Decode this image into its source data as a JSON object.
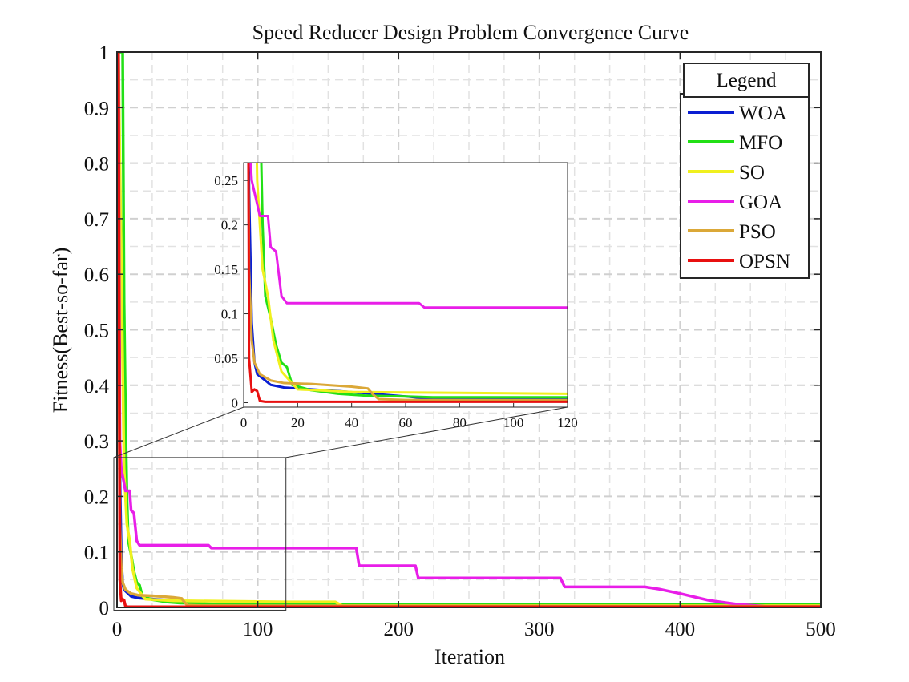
{
  "chart_data": {
    "type": "line",
    "title": "Speed Reducer Design Problem Convergence Curve",
    "xlabel": "Iteration",
    "ylabel": "Fitness(Best-so-far)",
    "xlim": [
      0,
      500
    ],
    "ylim": [
      0,
      1
    ],
    "xticks": [
      0,
      100,
      200,
      300,
      400,
      500
    ],
    "yticks": [
      0,
      0.1,
      0.2,
      0.3,
      0.4,
      0.5,
      0.6,
      0.7,
      0.8,
      0.9,
      1
    ],
    "grid": true,
    "legend": {
      "title": "Legend",
      "position": "top-right"
    },
    "series": [
      {
        "name": "WOA",
        "color": "#0a1ed2",
        "points": [
          [
            1,
            1
          ],
          [
            2,
            0.24
          ],
          [
            3,
            0.09
          ],
          [
            4,
            0.045
          ],
          [
            5,
            0.032
          ],
          [
            8,
            0.025
          ],
          [
            10,
            0.02
          ],
          [
            15,
            0.017
          ],
          [
            25,
            0.015
          ],
          [
            35,
            0.013
          ],
          [
            60,
            0.007
          ],
          [
            70,
            0.004
          ],
          [
            120,
            0.004
          ],
          [
            150,
            0.004
          ],
          [
            160,
            0.003
          ],
          [
            500,
            0.003
          ]
        ]
      },
      {
        "name": "MFO",
        "color": "#22e016",
        "points": [
          [
            1,
            1
          ],
          [
            4,
            1
          ],
          [
            5,
            0.55
          ],
          [
            6,
            0.35
          ],
          [
            7,
            0.2
          ],
          [
            8,
            0.12
          ],
          [
            10,
            0.095
          ],
          [
            12,
            0.065
          ],
          [
            14,
            0.045
          ],
          [
            16,
            0.04
          ],
          [
            18,
            0.02
          ],
          [
            25,
            0.014
          ],
          [
            35,
            0.01
          ],
          [
            45,
            0.008
          ],
          [
            60,
            0.007
          ],
          [
            70,
            0.006
          ],
          [
            500,
            0.006
          ]
        ]
      },
      {
        "name": "SO",
        "color": "#f0f01e",
        "points": [
          [
            1,
            1
          ],
          [
            5,
            0.25
          ],
          [
            7,
            0.15
          ],
          [
            9,
            0.12
          ],
          [
            11,
            0.07
          ],
          [
            14,
            0.035
          ],
          [
            20,
            0.015
          ],
          [
            40,
            0.012
          ],
          [
            80,
            0.011
          ],
          [
            120,
            0.01
          ],
          [
            155,
            0.01
          ],
          [
            160,
            0.003
          ],
          [
            500,
            0.003
          ]
        ]
      },
      {
        "name": "GOA",
        "color": "#e81ee8",
        "points": [
          [
            1,
            1
          ],
          [
            2,
            0.3
          ],
          [
            3,
            0.25
          ],
          [
            6,
            0.21
          ],
          [
            9,
            0.21
          ],
          [
            10,
            0.175
          ],
          [
            12,
            0.17
          ],
          [
            14,
            0.12
          ],
          [
            16,
            0.112
          ],
          [
            20,
            0.112
          ],
          [
            65,
            0.112
          ],
          [
            67,
            0.107
          ],
          [
            170,
            0.107
          ],
          [
            172,
            0.075
          ],
          [
            212,
            0.075
          ],
          [
            214,
            0.053
          ],
          [
            315,
            0.053
          ],
          [
            318,
            0.037
          ],
          [
            375,
            0.037
          ],
          [
            385,
            0.033
          ],
          [
            400,
            0.025
          ],
          [
            420,
            0.013
          ],
          [
            440,
            0.006
          ],
          [
            460,
            0.002
          ],
          [
            500,
            0.001
          ]
        ]
      },
      {
        "name": "PSO",
        "color": "#dba838",
        "points": [
          [
            1,
            0.7
          ],
          [
            2,
            0.15
          ],
          [
            3,
            0.07
          ],
          [
            4,
            0.045
          ],
          [
            6,
            0.032
          ],
          [
            10,
            0.025
          ],
          [
            15,
            0.022
          ],
          [
            25,
            0.021
          ],
          [
            40,
            0.018
          ],
          [
            46,
            0.016
          ],
          [
            48,
            0.009
          ],
          [
            50,
            0.004
          ],
          [
            60,
            0.003
          ],
          [
            500,
            0.002
          ]
        ]
      },
      {
        "name": "OPSN",
        "color": "#e81010",
        "points": [
          [
            1,
            1
          ],
          [
            2,
            0.05
          ],
          [
            3,
            0.012
          ],
          [
            4,
            0.015
          ],
          [
            5,
            0.013
          ],
          [
            6,
            0.002
          ],
          [
            8,
            0.001
          ],
          [
            500,
            0.001
          ]
        ]
      }
    ],
    "inset": {
      "xlim": [
        0,
        120
      ],
      "ylim": [
        -0.005,
        0.27
      ],
      "xticks": [
        0,
        20,
        40,
        60,
        80,
        100,
        120
      ],
      "yticks": [
        0,
        0.05,
        0.1,
        0.15,
        0.2,
        0.25
      ]
    }
  }
}
